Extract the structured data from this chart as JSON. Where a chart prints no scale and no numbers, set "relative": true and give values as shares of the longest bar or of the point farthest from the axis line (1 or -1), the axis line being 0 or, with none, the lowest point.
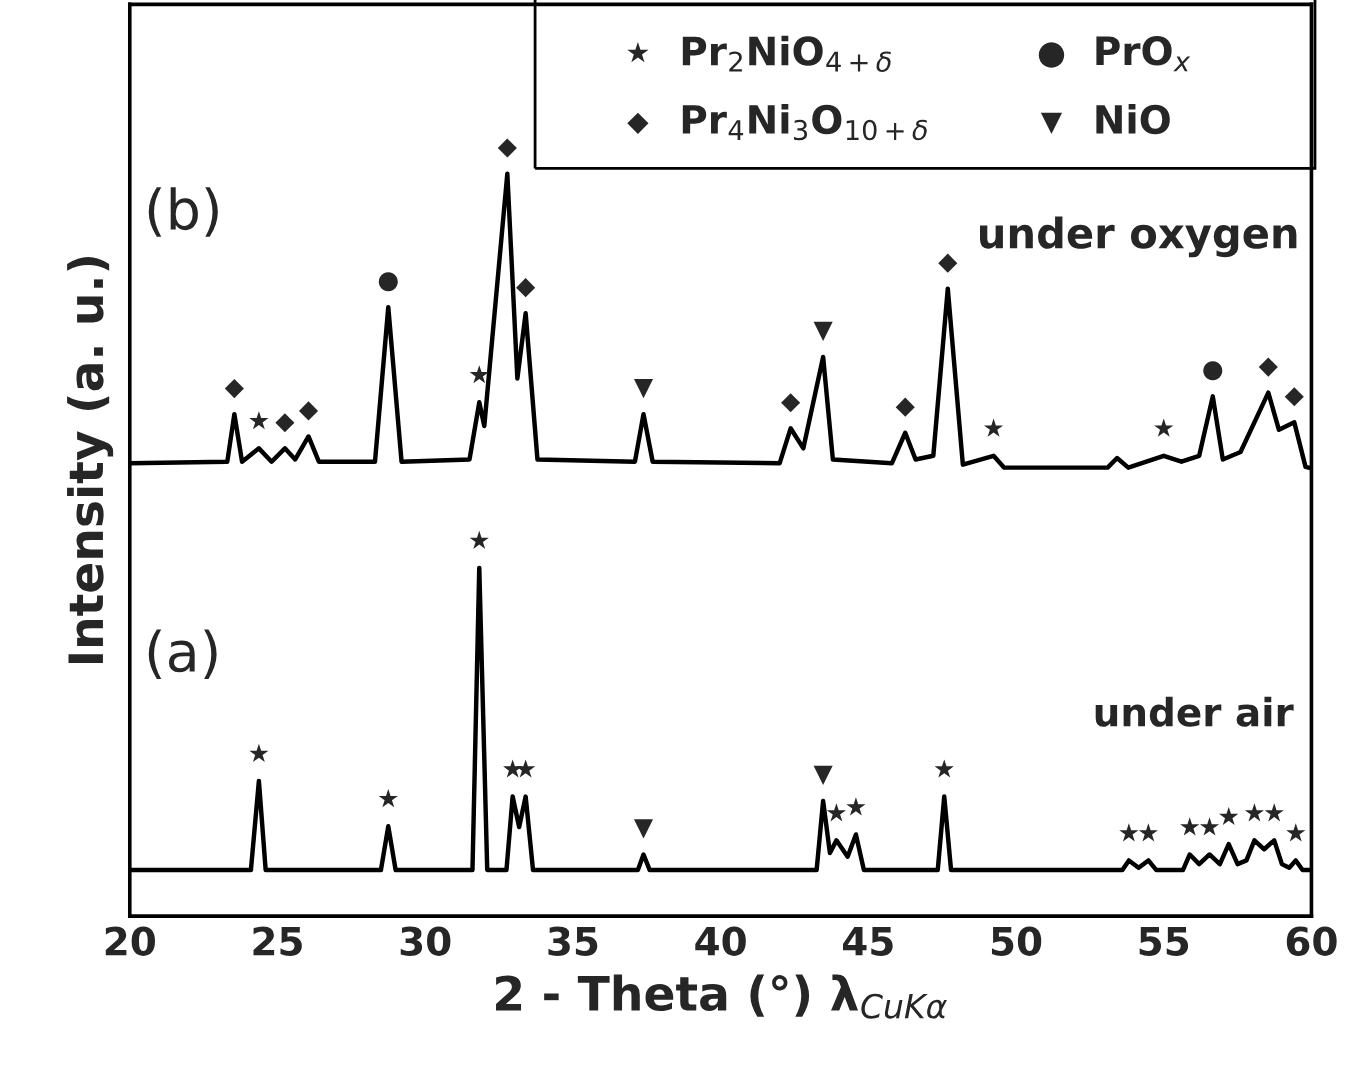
{
  "chart_data": {
    "type": "line",
    "relative": true,
    "xlabel": "2 - Theta (°) λ$_{CuKα}$",
    "ylabel": "Intensity (a. u.)",
    "xlim": [
      20,
      60
    ],
    "xticks": [
      20,
      25,
      30,
      35,
      40,
      45,
      50,
      55,
      60
    ],
    "grid": false,
    "legend": false,
    "marker": "none",
    "line_style": "solid",
    "series": [
      {
        "color": "#000000",
        "x": [
          20,
          23.3,
          23.54,
          23.8,
          24.37,
          24.8,
          25.25,
          25.6,
          26.05,
          26.4,
          28.3,
          28.75,
          29.2,
          31.5,
          31.83,
          32.0,
          32.78,
          33.12,
          33.4,
          33.8,
          37.1,
          37.39,
          37.7,
          42.0,
          42.37,
          42.8,
          43.47,
          43.8,
          45.8,
          46.25,
          46.6,
          47.2,
          47.69,
          48.2,
          49.24,
          49.6,
          53.1,
          53.42,
          53.8,
          55.0,
          55.6,
          56.2,
          56.66,
          57.0,
          57.6,
          58.54,
          58.9,
          59.42,
          59.8,
          60
        ],
        "values": [
          0.61,
          0.612,
          0.676,
          0.612,
          0.63,
          0.612,
          0.63,
          0.615,
          0.646,
          0.612,
          0.612,
          0.82,
          0.612,
          0.615,
          0.692,
          0.66,
          1.0,
          0.724,
          0.812,
          0.615,
          0.612,
          0.676,
          0.612,
          0.61,
          0.657,
          0.63,
          0.753,
          0.615,
          0.61,
          0.651,
          0.615,
          0.62,
          0.845,
          0.608,
          0.62,
          0.604,
          0.604,
          0.617,
          0.604,
          0.62,
          0.612,
          0.62,
          0.7,
          0.615,
          0.625,
          0.705,
          0.655,
          0.665,
          0.605,
          0.603
        ]
      },
      {
        "color": "#000000",
        "x": [
          20,
          24.1,
          24.37,
          24.6,
          28.5,
          28.75,
          29.0,
          31.6,
          31.83,
          32.1,
          32.75,
          32.96,
          33.18,
          33.4,
          33.65,
          37.2,
          37.39,
          37.6,
          43.25,
          43.47,
          43.7,
          43.92,
          44.3,
          44.58,
          44.85,
          47.35,
          47.57,
          47.8,
          53.6,
          53.82,
          54.15,
          54.48,
          54.75,
          55.65,
          55.88,
          56.2,
          56.55,
          56.9,
          57.2,
          57.5,
          57.8,
          58.07,
          58.4,
          58.74,
          59.0,
          59.25,
          59.47,
          59.7,
          60
        ],
        "values": [
          0.062,
          0.062,
          0.182,
          0.062,
          0.062,
          0.121,
          0.062,
          0.062,
          0.469,
          0.062,
          0.062,
          0.161,
          0.12,
          0.161,
          0.062,
          0.062,
          0.083,
          0.062,
          0.062,
          0.155,
          0.085,
          0.102,
          0.08,
          0.11,
          0.062,
          0.062,
          0.161,
          0.062,
          0.062,
          0.075,
          0.065,
          0.075,
          0.062,
          0.062,
          0.083,
          0.07,
          0.083,
          0.07,
          0.097,
          0.07,
          0.075,
          0.102,
          0.09,
          0.102,
          0.07,
          0.065,
          0.075,
          0.062,
          0.062
        ]
      }
    ],
    "annotations": [
      "(b)",
      "under oxygen",
      "(a)",
      "under air",
      "★",
      "Pr$_{2}$NiO$_{4+δ}$",
      "●",
      "PrO$_{x}$",
      "◆",
      "Pr$_{4}$Ni$_{3}$O$_{10+δ}$",
      "▼",
      "NiO",
      {
        "text": "◆",
        "x": 23.54,
        "y": 0.676
      },
      {
        "text": "★",
        "x": 24.37,
        "y": 0.63
      },
      {
        "text": "◆",
        "x": 25.25,
        "y": 0.63
      },
      {
        "text": "◆",
        "x": 26.05,
        "y": 0.646
      },
      {
        "text": "●",
        "x": 28.75,
        "y": 0.82
      },
      {
        "text": "★",
        "x": 31.83,
        "y": 0.692
      },
      {
        "text": "◆",
        "x": 32.78,
        "y": 1.0
      },
      {
        "text": "◆",
        "x": 33.4,
        "y": 0.812
      },
      {
        "text": "▼",
        "x": 37.39,
        "y": 0.676
      },
      {
        "text": "◆",
        "x": 42.37,
        "y": 0.657
      },
      {
        "text": "▼",
        "x": 43.47,
        "y": 0.753
      },
      {
        "text": "◆",
        "x": 46.25,
        "y": 0.651
      },
      {
        "text": "◆",
        "x": 47.69,
        "y": 0.845
      },
      {
        "text": "★",
        "x": 49.24,
        "y": 0.62
      },
      {
        "text": "★",
        "x": 55.0,
        "y": 0.62
      },
      {
        "text": "●",
        "x": 56.66,
        "y": 0.7
      },
      {
        "text": "◆",
        "x": 58.54,
        "y": 0.705
      },
      {
        "text": "◆",
        "x": 59.42,
        "y": 0.665
      },
      {
        "text": "★",
        "x": 24.37,
        "y": 0.182
      },
      {
        "text": "★",
        "x": 28.75,
        "y": 0.121
      },
      {
        "text": "★",
        "x": 31.83,
        "y": 0.469
      },
      {
        "text": "★",
        "x": 32.96,
        "y": 0.161
      },
      {
        "text": "★",
        "x": 33.4,
        "y": 0.161
      },
      {
        "text": "▼",
        "x": 37.39,
        "y": 0.083
      },
      {
        "text": "▼",
        "x": 43.47,
        "y": 0.155
      },
      {
        "text": "★",
        "x": 43.92,
        "y": 0.102
      },
      {
        "text": "★",
        "x": 44.58,
        "y": 0.11
      },
      {
        "text": "★",
        "x": 47.57,
        "y": 0.161
      },
      {
        "text": "★",
        "x": 53.82,
        "y": 0.075
      },
      {
        "text": "★",
        "x": 54.48,
        "y": 0.075
      },
      {
        "text": "★",
        "x": 55.88,
        "y": 0.083
      },
      {
        "text": "★",
        "x": 56.55,
        "y": 0.083
      },
      {
        "text": "★",
        "x": 57.2,
        "y": 0.097
      },
      {
        "text": "★",
        "x": 58.07,
        "y": 0.102
      },
      {
        "text": "★",
        "x": 58.74,
        "y": 0.102
      },
      {
        "text": "★",
        "x": 59.47,
        "y": 0.075
      }
    ]
  }
}
